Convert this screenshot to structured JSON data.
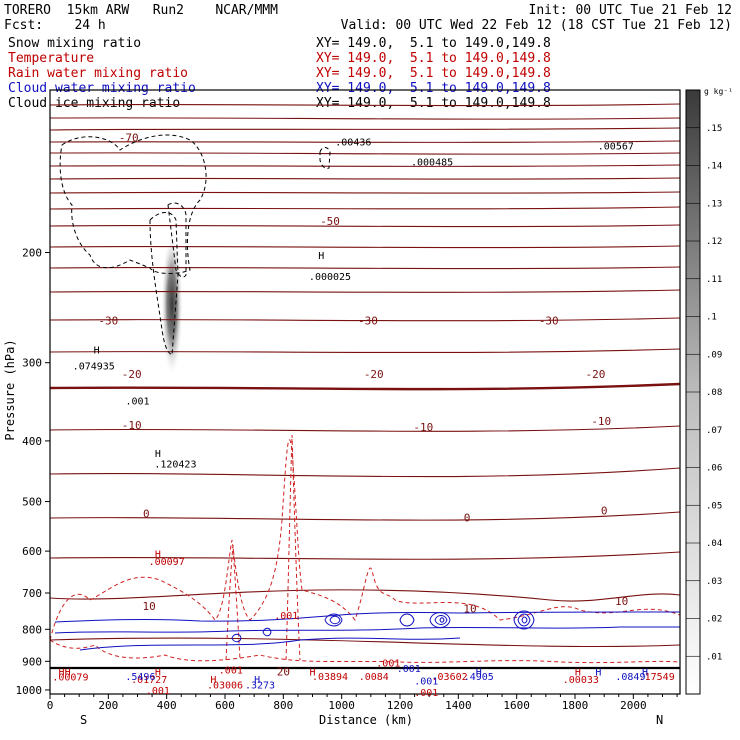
{
  "header": {
    "line1_left": "TORERO  15km ARW   Run2    NCAR/MMM",
    "line1_right": "Init: 00 UTC Tue 21 Feb 12",
    "line2_left": "Fcst:    24 h",
    "line2_right": "Valid: 00 UTC Wed 22 Feb 12 (18 CST Tue 21 Feb 12)"
  },
  "fields": [
    {
      "name": "Snow mixing ratio",
      "xy": "XY= 149.0,  5.1 to 149.0,149.8",
      "color": "#000000"
    },
    {
      "name": "Temperature",
      "xy": "XY= 149.0,  5.1 to 149.0,149.8",
      "color": "#c00000"
    },
    {
      "name": "Rain water mixing ratio",
      "xy": "XY= 149.0,  5.1 to 149.0,149.8",
      "color": "#c00000"
    },
    {
      "name": "Cloud water mixing ratio",
      "xy": "XY= 149.0,  5.1 to 149.0,149.8",
      "color": "#1010c0"
    },
    {
      "name": "Cloud ice mixing ratio",
      "xy": "XY= 149.0,  5.1 to 149.0,149.8",
      "color": "#000000"
    }
  ],
  "chart_data": {
    "type": "cross-section contour",
    "xlabel": "Distance (km)",
    "ylabel": "Pressure (hPa)",
    "x_ticks": [
      "0",
      "200",
      "400",
      "600",
      "800",
      "1000",
      "1200",
      "1400",
      "1600",
      "1800",
      "2000"
    ],
    "y_ticks": [
      "200",
      "300",
      "400",
      "500",
      "600",
      "700",
      "800",
      "900",
      "1000"
    ],
    "xlim": [
      0,
      2160
    ],
    "ylim": [
      1015,
      110
    ],
    "y_scale": "log",
    "left_end_label": "S",
    "right_end_label": "N",
    "colorbar": {
      "units": "g kg⁻¹",
      "ticks": [
        ".01",
        ".02",
        ".03",
        ".04",
        ".05",
        ".06",
        ".07",
        ".08",
        ".09",
        ".1",
        ".11",
        ".12",
        ".13",
        ".14",
        ".15"
      ]
    },
    "temperature_labels": [
      {
        "text": "-70",
        "x": 270,
        "p": 131
      },
      {
        "text": "-50",
        "x": 960,
        "p": 178
      },
      {
        "text": "-30",
        "x": 200,
        "p": 257
      },
      {
        "text": "-30",
        "x": 1090,
        "p": 257
      },
      {
        "text": "-30",
        "x": 1710,
        "p": 257
      },
      {
        "text": "-20",
        "x": 280,
        "p": 313
      },
      {
        "text": "-20",
        "x": 1110,
        "p": 313
      },
      {
        "text": "-20",
        "x": 1870,
        "p": 313
      },
      {
        "text": "-10",
        "x": 280,
        "p": 377
      },
      {
        "text": "-10",
        "x": 1280,
        "p": 380
      },
      {
        "text": "-10",
        "x": 1890,
        "p": 372
      },
      {
        "text": "0",
        "x": 330,
        "p": 522
      },
      {
        "text": "0",
        "x": 1430,
        "p": 530
      },
      {
        "text": "0",
        "x": 1900,
        "p": 517
      },
      {
        "text": "10",
        "x": 340,
        "p": 734
      },
      {
        "text": "10",
        "x": 1440,
        "p": 741
      },
      {
        "text": "10",
        "x": 1960,
        "p": 721
      },
      {
        "text": "20",
        "x": 800,
        "p": 935
      }
    ],
    "extrema_labels": [
      {
        "text": "H",
        "x": 160,
        "p": 286,
        "color": "#000000"
      },
      {
        "text": ".074935",
        "x": 150,
        "p": 303,
        "color": "#000000"
      },
      {
        "text": ".001",
        "x": 300,
        "p": 345,
        "color": "#000000"
      },
      {
        "text": "H",
        "x": 370,
        "p": 418,
        "color": "#000000"
      },
      {
        "text": ".120423",
        "x": 430,
        "p": 435,
        "color": "#000000"
      },
      {
        "text": "H",
        "x": 930,
        "p": 202,
        "color": "#000000"
      },
      {
        "text": ".000025",
        "x": 960,
        "p": 218,
        "color": "#000000"
      },
      {
        "text": ".00436",
        "x": 1040,
        "p": 133,
        "color": "#000000"
      },
      {
        "text": ".000485",
        "x": 1310,
        "p": 143,
        "color": "#000000"
      },
      {
        "text": ".00567",
        "x": 1940,
        "p": 135,
        "color": "#000000"
      },
      {
        "text": "H",
        "x": 370,
        "p": 605,
        "color": "#c00000"
      },
      {
        "text": ".00097",
        "x": 400,
        "p": 622,
        "color": "#c00000"
      },
      {
        "text": ".001",
        "x": 810,
        "p": 759,
        "color": "#c00000"
      },
      {
        "text": ".001",
        "x": 620,
        "p": 927,
        "color": "#c00000"
      },
      {
        "text": ".001",
        "x": 1160,
        "p": 904,
        "color": "#c00000"
      },
      {
        "text": ".001",
        "x": 370,
        "p": 1000,
        "color": "#c00000"
      },
      {
        "text": ".001",
        "x": 1290,
        "p": 1007,
        "color": "#c00000"
      },
      {
        "text": "HH",
        "x": 50,
        "p": 934,
        "color": "#c00000"
      },
      {
        "text": ".00079",
        "x": 70,
        "p": 952,
        "color": "#c00000"
      },
      {
        "text": "H",
        "x": 370,
        "p": 934,
        "color": "#c00000"
      },
      {
        "text": ".01727",
        "x": 340,
        "p": 961,
        "color": "#c00000"
      },
      {
        "text": "H",
        "x": 560,
        "p": 960,
        "color": "#c00000"
      },
      {
        "text": ".03006",
        "x": 600,
        "p": 981,
        "color": "#c00000"
      },
      {
        "text": "H",
        "x": 900,
        "p": 934,
        "color": "#c00000"
      },
      {
        "text": ".03894",
        "x": 960,
        "p": 950,
        "color": "#c00000"
      },
      {
        "text": ".0084",
        "x": 1110,
        "p": 950,
        "color": "#c00000"
      },
      {
        "text": ".03602",
        "x": 1370,
        "p": 950,
        "color": "#c00000"
      },
      {
        "text": "H",
        "x": 1810,
        "p": 934,
        "color": "#c00000"
      },
      {
        "text": ".00033",
        "x": 1820,
        "p": 961,
        "color": "#c00000"
      },
      {
        "text": ".17549",
        "x": 2080,
        "p": 950,
        "color": "#c00000"
      },
      {
        "text": ".5496",
        "x": 310,
        "p": 950,
        "color": "#1010c0"
      },
      {
        "text": "H",
        "x": 710,
        "p": 960,
        "color": "#1010c0"
      },
      {
        "text": ".3273",
        "x": 720,
        "p": 981,
        "color": "#1010c0"
      },
      {
        "text": ".001",
        "x": 1230,
        "p": 922,
        "color": "#1010c0"
      },
      {
        "text": ".001",
        "x": 1290,
        "p": 965,
        "color": "#1010c0"
      },
      {
        "text": "H",
        "x": 1470,
        "p": 934,
        "color": "#1010c0"
      },
      {
        "text": ".4905",
        "x": 1470,
        "p": 950,
        "color": "#1010c0"
      },
      {
        "text": ".0849",
        "x": 1990,
        "p": 950,
        "color": "#1010c0"
      },
      {
        "text": "H",
        "x": 1880,
        "p": 934,
        "color": "#1010c0"
      },
      {
        "text": "H",
        "x": 2040,
        "p": 934,
        "color": "#1010c0"
      }
    ]
  }
}
